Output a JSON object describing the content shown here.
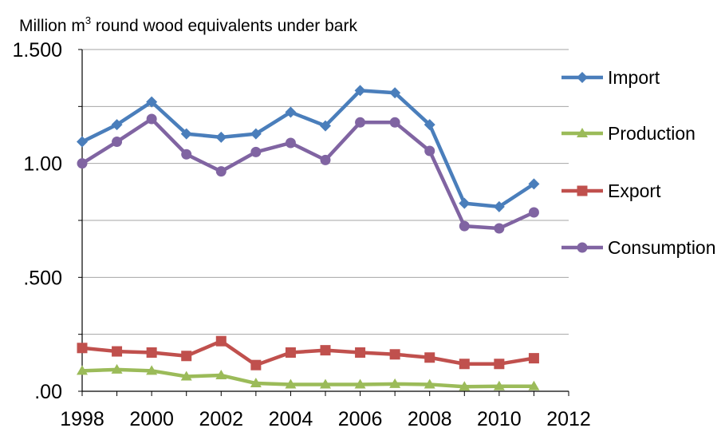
{
  "chart_data": {
    "type": "line",
    "ylabel_prefix": "Million m",
    "ylabel_sup": "3",
    "ylabel_suffix": " round wood equivalents under bark",
    "xlabel": "",
    "title": "",
    "x": [
      1998,
      1999,
      2000,
      2001,
      2002,
      2003,
      2004,
      2005,
      2006,
      2007,
      2008,
      2009,
      2010,
      2011
    ],
    "xlim": [
      1998,
      2012
    ],
    "ylim": [
      0,
      1.5
    ],
    "xticks": [
      1998,
      2000,
      2002,
      2004,
      2006,
      2008,
      2010,
      2012
    ],
    "yticks": [
      {
        "value": 0,
        "label": ".00"
      },
      {
        "value": 0.5,
        "label": ".500"
      },
      {
        "value": 1.0,
        "label": "1.00"
      },
      {
        "value": 1.5,
        "label": "1.500"
      }
    ],
    "grid": true,
    "legend_position": "right",
    "series": [
      {
        "name": "Import",
        "color": "#4a7ebb",
        "marker": "diamond",
        "values": [
          1.095,
          1.17,
          1.27,
          1.13,
          1.115,
          1.13,
          1.225,
          1.165,
          1.32,
          1.31,
          1.17,
          0.825,
          0.81,
          0.91
        ]
      },
      {
        "name": "Production",
        "color": "#9bbb59",
        "marker": "triangle",
        "values": [
          0.09,
          0.095,
          0.09,
          0.065,
          0.07,
          0.035,
          0.03,
          0.03,
          0.03,
          0.032,
          0.03,
          0.02,
          0.022,
          0.022
        ]
      },
      {
        "name": "Export",
        "color": "#c0504d",
        "marker": "square",
        "values": [
          0.19,
          0.175,
          0.17,
          0.155,
          0.22,
          0.115,
          0.17,
          0.18,
          0.17,
          0.162,
          0.148,
          0.12,
          0.12,
          0.145
        ]
      },
      {
        "name": "Consumption",
        "color": "#8064a2",
        "marker": "circle",
        "values": [
          1.0,
          1.095,
          1.195,
          1.04,
          0.965,
          1.05,
          1.09,
          1.015,
          1.18,
          1.18,
          1.055,
          0.725,
          0.715,
          0.785
        ]
      }
    ]
  }
}
